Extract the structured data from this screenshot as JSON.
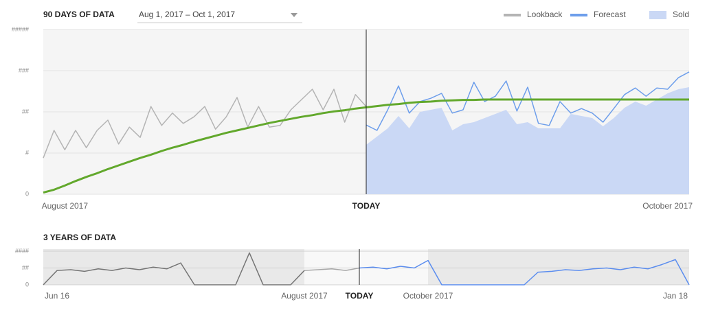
{
  "chart_data": [
    {
      "type": "line",
      "title": "90 DAYS OF DATA",
      "date_range": "Aug 1, 2017 – Oct 1, 2017",
      "categories": [
        null,
        null,
        "August 2017",
        null,
        null,
        null,
        null,
        null,
        null,
        null,
        null,
        null,
        null,
        null,
        null,
        null,
        null,
        null,
        null,
        null,
        null,
        null,
        null,
        null,
        null,
        null,
        null,
        null,
        null,
        null,
        "TODAY",
        null,
        null,
        null,
        null,
        null,
        null,
        null,
        null,
        null,
        null,
        null,
        null,
        null,
        null,
        null,
        null,
        null,
        null,
        null,
        null,
        null,
        null,
        null,
        null,
        null,
        null,
        null,
        "October 2017",
        null,
        null
      ],
      "ylim": [
        0,
        4
      ],
      "yticks": [
        0,
        {
          "value": 1,
          "label": "#"
        },
        {
          "value": 2,
          "label": "##"
        },
        {
          "value": 3,
          "label": "###"
        },
        {
          "value": 4,
          "label": "#####"
        }
      ],
      "grid": true,
      "legend": "top-right",
      "series": [
        {
          "name": "Sold",
          "type": "area",
          "color": "#cad8f5",
          "values": [
            null,
            null,
            null,
            null,
            null,
            null,
            null,
            null,
            null,
            null,
            null,
            null,
            null,
            null,
            null,
            null,
            null,
            null,
            null,
            null,
            null,
            null,
            null,
            null,
            null,
            null,
            null,
            null,
            null,
            null,
            1.2,
            1.4,
            1.6,
            1.9,
            1.6,
            2.0,
            2.05,
            2.1,
            1.55,
            1.7,
            1.75,
            1.85,
            1.95,
            2.05,
            1.7,
            1.75,
            1.6,
            1.6,
            1.6,
            1.95,
            1.9,
            1.85,
            1.65,
            1.85,
            2.1,
            2.25,
            2.15,
            2.3,
            2.45,
            2.55,
            2.6
          ]
        },
        {
          "name": "Lookback",
          "type": "line",
          "color": "#b4b4b4",
          "values": [
            0.88,
            1.55,
            1.08,
            1.55,
            1.13,
            1.55,
            1.8,
            1.22,
            1.63,
            1.38,
            2.13,
            1.67,
            1.97,
            1.72,
            1.88,
            2.13,
            1.58,
            1.88,
            2.35,
            1.63,
            2.13,
            1.63,
            1.67,
            2.05,
            2.3,
            2.55,
            2.05,
            2.55,
            1.75,
            2.42,
            2.13,
            null,
            null,
            null,
            null,
            null,
            null,
            null,
            null,
            null,
            null,
            null,
            null,
            null,
            null,
            null,
            null,
            null,
            null,
            null,
            null,
            null,
            null,
            null,
            null,
            null,
            null,
            null,
            null,
            null,
            null
          ]
        },
        {
          "name": "Forecast",
          "type": "line",
          "color": "#6d9eeb",
          "values": [
            null,
            null,
            null,
            null,
            null,
            null,
            null,
            null,
            null,
            null,
            null,
            null,
            null,
            null,
            null,
            null,
            null,
            null,
            null,
            null,
            null,
            null,
            null,
            null,
            null,
            null,
            null,
            null,
            null,
            null,
            1.68,
            1.55,
            2.05,
            2.63,
            1.97,
            2.25,
            2.33,
            2.45,
            1.97,
            2.05,
            2.72,
            2.25,
            2.38,
            2.75,
            2.02,
            2.6,
            1.72,
            1.67,
            2.25,
            1.97,
            2.08,
            1.97,
            1.75,
            2.08,
            2.42,
            2.58,
            2.38,
            2.58,
            2.55,
            2.83,
            2.97
          ]
        },
        {
          "type": "line",
          "color": "#62a82c",
          "width": 3,
          "values": [
            0.04,
            0.11,
            0.21,
            0.32,
            0.42,
            0.51,
            0.61,
            0.7,
            0.79,
            0.88,
            0.96,
            1.05,
            1.13,
            1.2,
            1.28,
            1.35,
            1.42,
            1.49,
            1.55,
            1.61,
            1.67,
            1.73,
            1.78,
            1.83,
            1.88,
            1.92,
            1.97,
            2.01,
            2.04,
            2.08,
            2.11,
            2.14,
            2.17,
            2.19,
            2.22,
            2.24,
            2.25,
            2.27,
            2.28,
            2.29,
            2.29,
            2.3,
            2.3,
            2.3,
            2.3,
            2.3,
            2.3,
            2.3,
            2.3,
            2.3,
            2.3,
            2.3,
            2.3,
            2.3,
            2.3,
            2.3,
            2.3,
            2.3,
            2.3,
            2.3,
            2.3
          ]
        }
      ]
    },
    {
      "type": "line",
      "title": "3 YEARS OF DATA",
      "categories": [
        null,
        "Jun 16",
        null,
        null,
        null,
        null,
        null,
        null,
        null,
        null,
        null,
        null,
        null,
        null,
        null,
        null,
        null,
        null,
        null,
        "August 2017",
        null,
        null,
        null,
        "TODAY",
        null,
        null,
        null,
        null,
        "October 2017",
        null,
        null,
        null,
        null,
        null,
        null,
        null,
        null,
        null,
        null,
        null,
        null,
        null,
        null,
        null,
        null,
        null,
        "Jan 18",
        null
      ],
      "ylim": [
        0,
        2
      ],
      "yticks": [
        0,
        {
          "value": 1,
          "label": "##"
        },
        {
          "value": 2,
          "label": "####"
        }
      ],
      "grid": true,
      "series": [
        {
          "type": "line",
          "color": "#757575",
          "values": [
            0,
            0.85,
            0.9,
            0.8,
            0.95,
            0.85,
            1.0,
            0.9,
            1.05,
            0.95,
            1.3,
            0,
            0,
            0,
            0,
            1.9,
            0,
            0,
            0,
            0.85,
            null,
            null,
            null,
            null,
            null,
            null,
            null,
            null,
            null,
            null,
            null,
            null,
            null,
            null,
            null,
            null,
            null,
            null,
            null,
            null,
            null,
            null,
            null,
            null,
            null,
            null,
            null,
            null
          ]
        },
        {
          "type": "line",
          "color": "#a8a8a8",
          "values": [
            null,
            null,
            null,
            null,
            null,
            null,
            null,
            null,
            null,
            null,
            null,
            null,
            null,
            null,
            null,
            null,
            null,
            null,
            null,
            0.85,
            0.9,
            0.95,
            0.85,
            1.0,
            null,
            null,
            null,
            null,
            null,
            null,
            null,
            null,
            null,
            null,
            null,
            null,
            null,
            null,
            null,
            null,
            null,
            null,
            null,
            null,
            null,
            null,
            null,
            null
          ]
        },
        {
          "type": "line",
          "color": "#5b8def",
          "values": [
            null,
            null,
            null,
            null,
            null,
            null,
            null,
            null,
            null,
            null,
            null,
            null,
            null,
            null,
            null,
            null,
            null,
            null,
            null,
            null,
            null,
            null,
            null,
            1.0,
            1.05,
            0.95,
            1.1,
            1.0,
            1.45,
            0,
            0,
            0,
            0,
            0,
            0,
            0,
            0.75,
            0.8,
            0.9,
            0.85,
            0.95,
            1.0,
            0.9,
            1.05,
            0.95,
            1.2,
            1.5,
            0
          ]
        }
      ]
    }
  ]
}
